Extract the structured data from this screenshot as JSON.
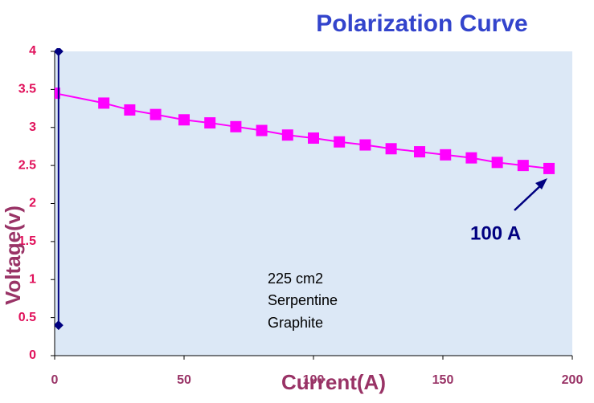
{
  "chart_data": {
    "type": "line",
    "title": "Polarization Curve",
    "x_label": "Current(A)",
    "y_label": "Voltage(v)",
    "xlim": [
      0,
      200
    ],
    "xticks": [
      0,
      50,
      100,
      150,
      200
    ],
    "ylim": [
      0,
      4
    ],
    "yticks": [
      0,
      0.5,
      1,
      1.5,
      2,
      2.5,
      3,
      3.5,
      4
    ],
    "series": [
      {
        "color": "#ff00ff",
        "marker": "square",
        "x": [
          0,
          19,
          29,
          39,
          50,
          60,
          70,
          80,
          90,
          100,
          110,
          120,
          130,
          141,
          151,
          161,
          171,
          181,
          191
        ],
        "values": [
          3.45,
          3.32,
          3.23,
          3.17,
          3.1,
          3.06,
          3.01,
          2.96,
          2.9,
          2.86,
          2.81,
          2.77,
          2.72,
          2.68,
          2.64,
          2.6,
          2.54,
          2.5,
          2.46
        ]
      },
      {
        "color": "#000080",
        "marker": "diamond",
        "x": [
          1.5,
          1.5
        ],
        "values": [
          0.4,
          4
        ]
      }
    ],
    "annotations": {
      "text_box": [
        "225 cm2",
        "Serpentine",
        "Graphite"
      ],
      "arrow_label": "100 A"
    }
  }
}
